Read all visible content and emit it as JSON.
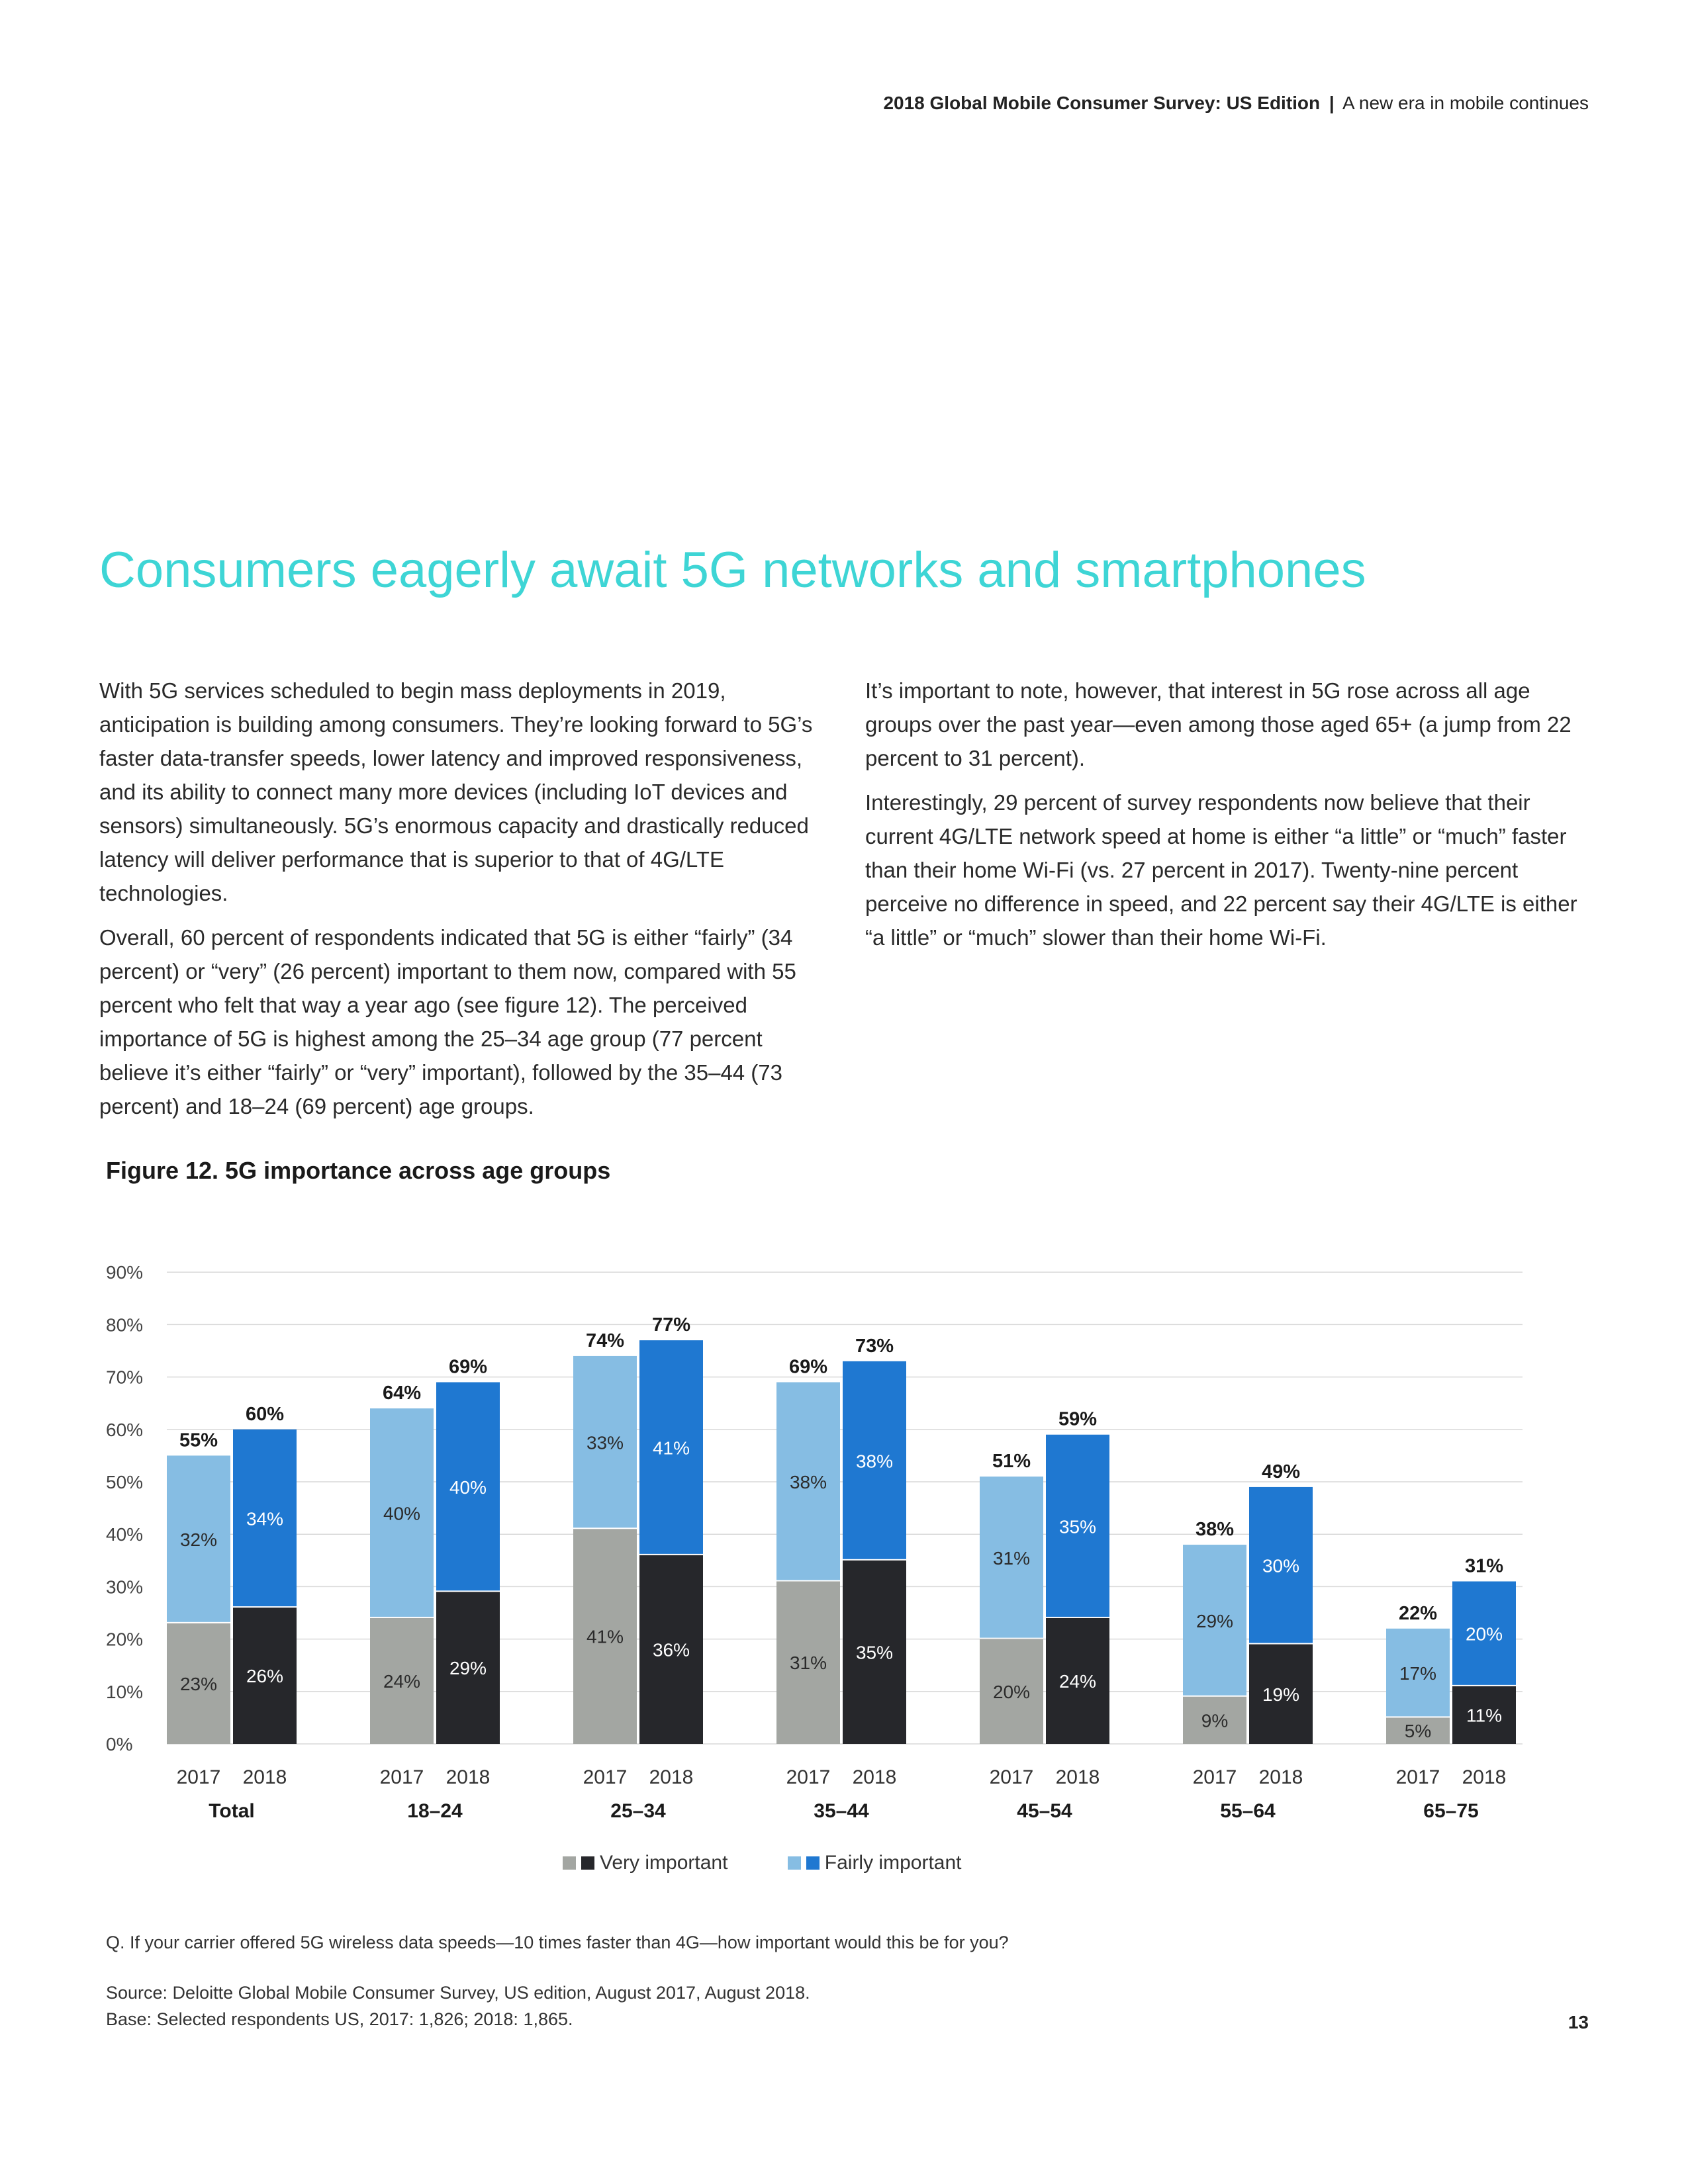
{
  "header": {
    "title": "2018 Global Mobile Consumer Survey: US Edition",
    "separator": "|",
    "subtitle": "A new era in mobile continues"
  },
  "heading": "Consumers eagerly await 5G networks and smartphones",
  "body": {
    "left": [
      "With 5G services scheduled to begin mass deployments in 2019, anticipation is building among consumers. They’re looking forward to 5G’s faster data-transfer speeds, lower latency and improved responsiveness, and its ability to connect many more devices (including IoT devices and sensors) simultaneously. 5G’s enormous capacity and drastically reduced latency will deliver performance that is superior to that of 4G/LTE technologies.",
      "Overall, 60 percent of respondents indicated that 5G is either “fairly” (34 percent) or “very” (26 percent) important to them now, compared with 55 percent who felt that way a year ago (see figure 12). The perceived importance of 5G is highest among the 25–34 age group (77 percent believe it’s either “fairly” or “very” important), followed by the 35–44 (73 percent) and 18–24 (69 percent) age groups."
    ],
    "right": [
      "It’s important to note, however, that interest in 5G rose across all age groups over the past year—even among those aged 65+ (a jump from 22 percent to 31 percent).",
      "Interestingly, 29 percent of survey respondents now believe that their current 4G/LTE network speed at home is either “a little” or “much” faster than their home Wi-Fi (vs. 27 percent in 2017). Twenty-nine percent perceive no difference in speed, and 22 percent say their 4G/LTE is either “a little” or “much” slower than their home Wi-Fi."
    ]
  },
  "figure_title": "Figure 12. 5G importance across age groups",
  "chart_data": {
    "type": "bar",
    "stacked": true,
    "title": "Figure 12. 5G importance across age groups",
    "y_ticks": [
      "0%",
      "10%",
      "20%",
      "30%",
      "40%",
      "50%",
      "60%",
      "70%",
      "80%",
      "90%"
    ],
    "ylim": [
      0,
      90
    ],
    "grid": true,
    "groups": [
      {
        "name": "Total",
        "bars": [
          {
            "year": "2017",
            "very": 23,
            "fairly": 32,
            "total": 55
          },
          {
            "year": "2018",
            "very": 26,
            "fairly": 34,
            "total": 60
          }
        ]
      },
      {
        "name": "18–24",
        "bars": [
          {
            "year": "2017",
            "very": 24,
            "fairly": 40,
            "total": 64
          },
          {
            "year": "2018",
            "very": 29,
            "fairly": 40,
            "total": 69
          }
        ]
      },
      {
        "name": "25–34",
        "bars": [
          {
            "year": "2017",
            "very": 41,
            "fairly": 33,
            "total": 74
          },
          {
            "year": "2018",
            "very": 36,
            "fairly": 41,
            "total": 77
          }
        ]
      },
      {
        "name": "35–44",
        "bars": [
          {
            "year": "2017",
            "very": 31,
            "fairly": 38,
            "total": 69
          },
          {
            "year": "2018",
            "very": 35,
            "fairly": 38,
            "total": 73
          }
        ]
      },
      {
        "name": "45–54",
        "bars": [
          {
            "year": "2017",
            "very": 20,
            "fairly": 31,
            "total": 51
          },
          {
            "year": "2018",
            "very": 24,
            "fairly": 35,
            "total": 59
          }
        ]
      },
      {
        "name": "55–64",
        "bars": [
          {
            "year": "2017",
            "very": 9,
            "fairly": 29,
            "total": 38
          },
          {
            "year": "2018",
            "very": 19,
            "fairly": 30,
            "total": 49
          }
        ]
      },
      {
        "name": "65–75",
        "bars": [
          {
            "year": "2017",
            "very": 5,
            "fairly": 17,
            "total": 22
          },
          {
            "year": "2018",
            "very": 11,
            "fairly": 20,
            "total": 31
          }
        ]
      }
    ],
    "legend": [
      {
        "label": "Very important",
        "colors": [
          "#a3a6a2",
          "#26272b"
        ]
      },
      {
        "label": "Fairly important",
        "colors": [
          "#86bde3",
          "#1f78d1"
        ]
      }
    ],
    "colors": {
      "very_2017": "#a3a6a2",
      "very_2018": "#26272b",
      "fairly_2017": "#86bde3",
      "fairly_2018": "#1f78d1"
    }
  },
  "question": "Q. If your carrier offered 5G wireless data speeds—10 times faster than 4G—how important would this be for you?",
  "source": "Source: Deloitte Global Mobile Consumer Survey, US edition, August 2017, August 2018.",
  "base": "Base: Selected respondents US, 2017: 1,826; 2018: 1,865.",
  "page_number": "13"
}
